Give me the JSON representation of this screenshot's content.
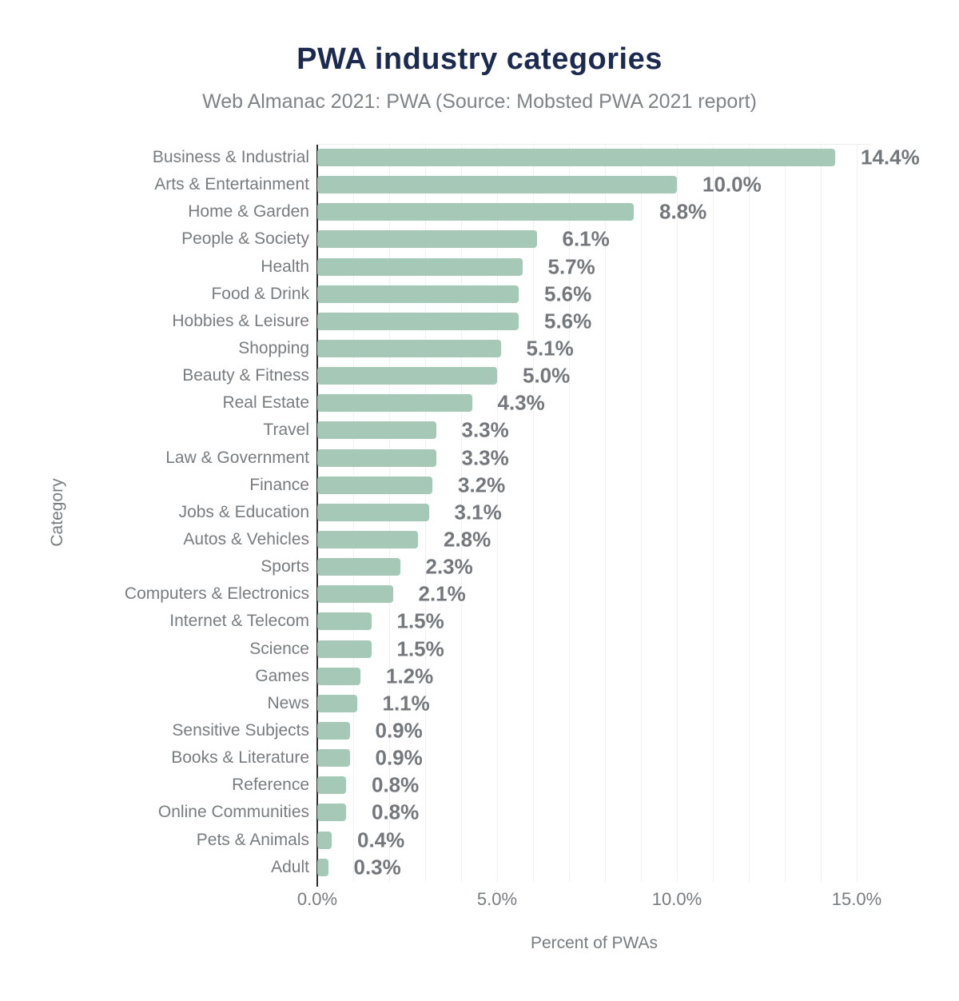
{
  "header": {
    "title": "PWA industry categories",
    "subtitle": "Web Almanac 2021: PWA (Source: Mobsted PWA 2021 report)"
  },
  "chart_data": {
    "type": "bar",
    "orientation": "horizontal",
    "title": "PWA industry categories",
    "subtitle": "Web Almanac 2021: PWA (Source: Mobsted PWA 2021 report)",
    "xlabel": "Percent of PWAs",
    "ylabel": "Category",
    "categories": [
      "Business & Industrial",
      "Arts & Entertainment",
      "Home & Garden",
      "People & Society",
      "Health",
      "Food & Drink",
      "Hobbies & Leisure",
      "Shopping",
      "Beauty & Fitness",
      "Real Estate",
      "Travel",
      "Law & Government",
      "Finance",
      "Jobs & Education",
      "Autos & Vehicles",
      "Sports",
      "Computers & Electronics",
      "Internet & Telecom",
      "Science",
      "Games",
      "News",
      "Sensitive Subjects",
      "Books & Literature",
      "Reference",
      "Online Communities",
      "Pets & Animals",
      "Adult"
    ],
    "values": [
      14.4,
      10.0,
      8.8,
      6.1,
      5.7,
      5.6,
      5.6,
      5.1,
      5.0,
      4.3,
      3.3,
      3.3,
      3.2,
      3.1,
      2.8,
      2.3,
      2.1,
      1.5,
      1.5,
      1.2,
      1.1,
      0.9,
      0.9,
      0.8,
      0.8,
      0.4,
      0.3
    ],
    "value_labels": [
      "14.4%",
      "10.0%",
      "8.8%",
      "6.1%",
      "5.7%",
      "5.6%",
      "5.6%",
      "5.1%",
      "5.0%",
      "4.3%",
      "3.3%",
      "3.3%",
      "3.2%",
      "3.1%",
      "2.8%",
      "2.3%",
      "2.1%",
      "1.5%",
      "1.5%",
      "1.2%",
      "1.1%",
      "0.9%",
      "0.9%",
      "0.8%",
      "0.8%",
      "0.4%",
      "0.3%"
    ],
    "x_ticks": [
      "0.0%",
      "5.0%",
      "10.0%",
      "15.0%"
    ],
    "x_tick_values": [
      0,
      5,
      10,
      15
    ],
    "xlim": [
      0,
      15.4
    ],
    "grid": "minor vertical gridlines every 1%, light gray",
    "legend": "none",
    "bar_color": "#a6c8b7",
    "value_label_color": "#74787c",
    "category_label_color": "#797c7f",
    "title_color": "#1b2a4e",
    "subtitle_color": "#7f8387",
    "axis_line_color": "#2d2d2d",
    "gridline_color": "#f1f1f4"
  }
}
